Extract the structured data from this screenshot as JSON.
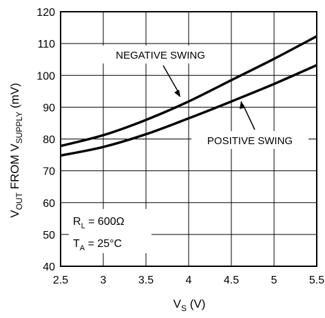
{
  "chart_data": {
    "type": "line",
    "xlabel_main": "V",
    "xlabel_sub": "S",
    "xlabel_unit": " (V)",
    "ylabel_parts": {
      "v": "V",
      "out": "OUT",
      "from": " FROM V",
      "supply": "SUPPLY",
      "unit": " (mV)"
    },
    "xlim": [
      2.5,
      5.5
    ],
    "ylim": [
      40,
      120
    ],
    "xticks": [
      "2.5",
      "3",
      "3.5",
      "4",
      "4.5",
      "5",
      "5.5"
    ],
    "yticks": [
      "40",
      "50",
      "60",
      "70",
      "80",
      "90",
      "100",
      "110",
      "120"
    ],
    "grid": true,
    "series": [
      {
        "name": "NEGATIVE SWING",
        "x": [
          2.5,
          3.0,
          3.5,
          4.0,
          4.5,
          5.0,
          5.5
        ],
        "y": [
          77.8,
          81.2,
          86.0,
          91.8,
          98.5,
          105.2,
          112.3
        ]
      },
      {
        "name": "POSITIVE SWING",
        "x": [
          2.5,
          3.0,
          3.5,
          4.0,
          4.5,
          5.0,
          5.5
        ],
        "y": [
          74.8,
          77.5,
          81.5,
          86.5,
          91.8,
          97.3,
          103.2
        ]
      }
    ],
    "annotations": {
      "negative": "NEGATIVE SWING",
      "positive": "POSITIVE SWING"
    },
    "conditions": {
      "rl_main": "R",
      "rl_sub": "L",
      "rl_value": " = 600Ω",
      "ta_main": "T",
      "ta_sub": "A",
      "ta_value": " = 25°C"
    }
  }
}
